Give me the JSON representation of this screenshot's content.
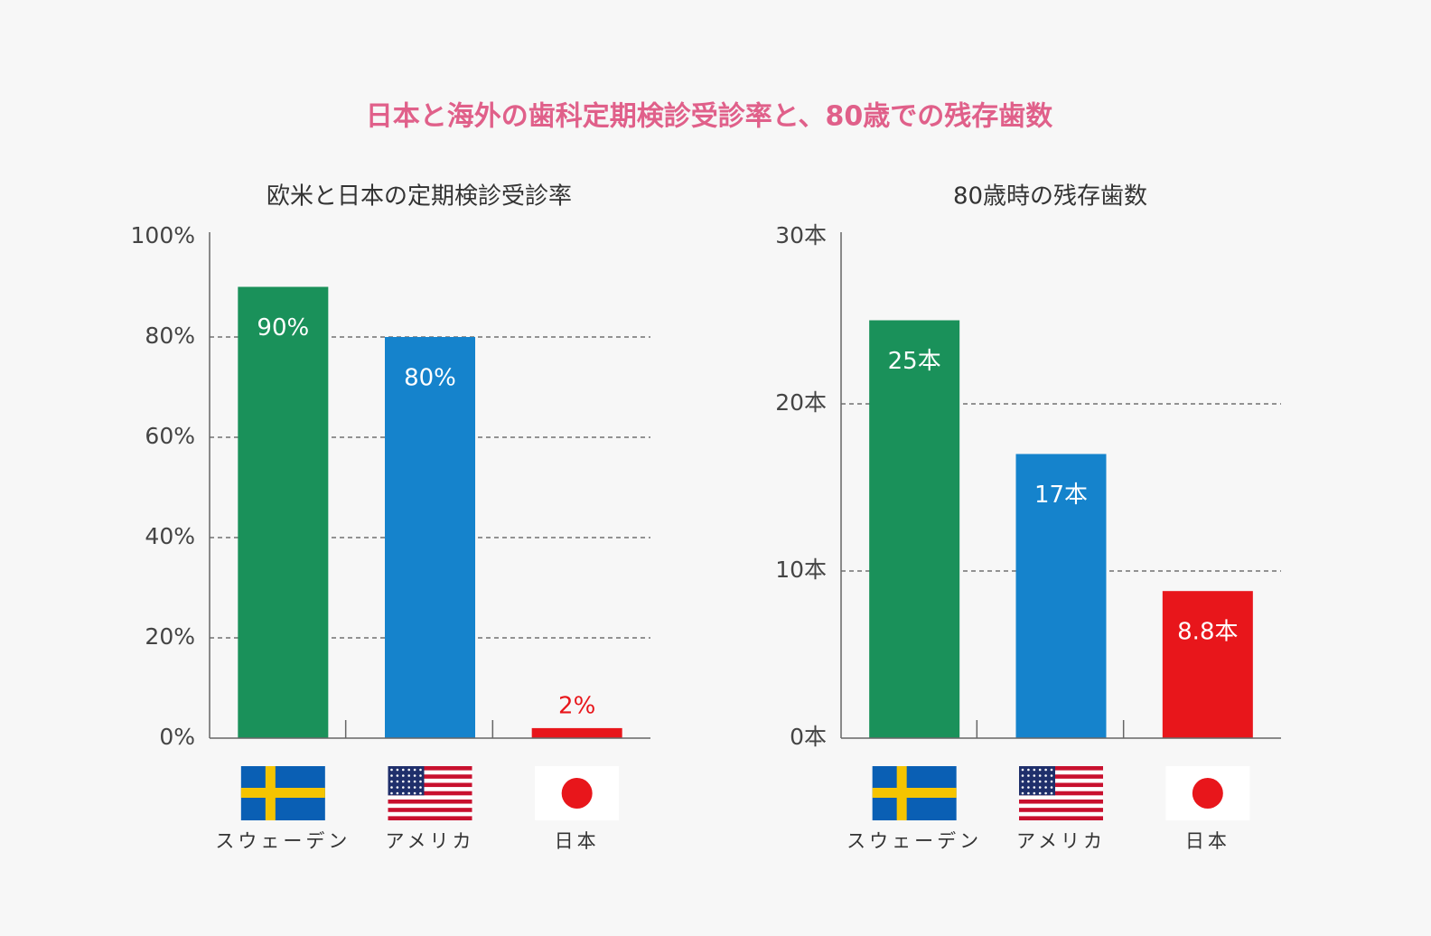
{
  "title": "日本と海外の歯科定期検診受診率と、80歳での残存歯数",
  "chart_data": [
    {
      "type": "bar",
      "title": "欧米と日本の定期検診受診率",
      "categories": [
        "スウェーデン",
        "アメリカ",
        "日本"
      ],
      "values": [
        90,
        80,
        2
      ],
      "value_labels": [
        "90%",
        "80%",
        "2%"
      ],
      "colors": [
        "#1a915a",
        "#1583cc",
        "#e8161b"
      ],
      "ylim": [
        0,
        100
      ],
      "yticks": [
        {
          "value": 0,
          "label": "0%"
        },
        {
          "value": 20,
          "label": "20%"
        },
        {
          "value": 40,
          "label": "40%"
        },
        {
          "value": 60,
          "label": "60%"
        },
        {
          "value": 80,
          "label": "80%"
        },
        {
          "value": 100,
          "label": "100%"
        }
      ],
      "grid": true
    },
    {
      "type": "bar",
      "title": "80歳時の残存歯数",
      "categories": [
        "スウェーデン",
        "アメリカ",
        "日本"
      ],
      "values": [
        25,
        17,
        8.8
      ],
      "value_labels": [
        "25本",
        "17本",
        "8.8本"
      ],
      "colors": [
        "#1a915a",
        "#1583cc",
        "#e8161b"
      ],
      "ylim": [
        0,
        30
      ],
      "yticks": [
        {
          "value": 0,
          "label": "0本"
        },
        {
          "value": 10,
          "label": "10本"
        },
        {
          "value": 20,
          "label": "20本"
        },
        {
          "value": 30,
          "label": "30本"
        }
      ],
      "grid": true
    }
  ]
}
